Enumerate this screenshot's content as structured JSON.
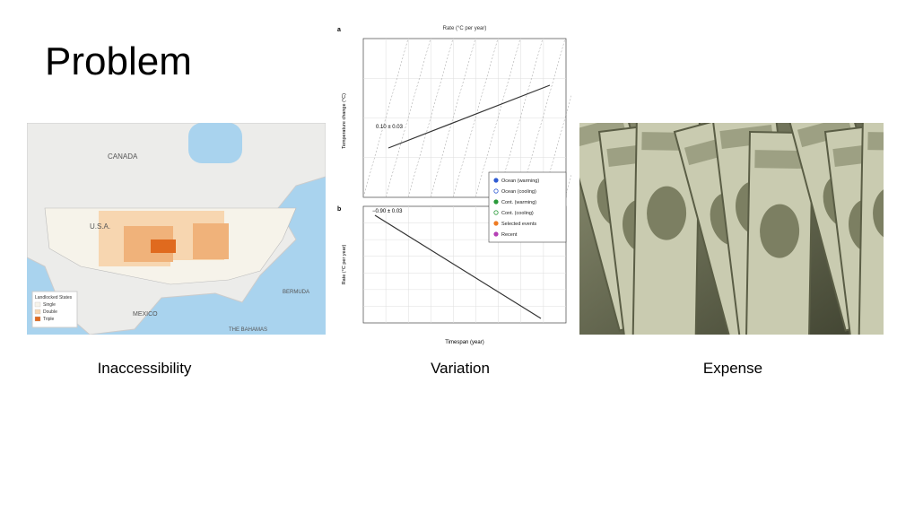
{
  "title": "Problem",
  "panels": [
    {
      "caption": "Inaccessibility",
      "map": {
        "labels": [
          "CANADA",
          "U.S.A.",
          "MEXICO",
          "BERMUDA",
          "THE BAHAMAS"
        ],
        "legend": {
          "title": "Landlocked States",
          "items": [
            "Single",
            "Double",
            "Triple"
          ]
        }
      }
    },
    {
      "caption": "Variation",
      "figure": {
        "panel_a": "a",
        "panel_b": "b",
        "top_axis": "Rate (°C per year)",
        "y_label_a": "Temperature change (°C)",
        "y_label_b": "Rate (°C per year)",
        "x_label": "Timespan (year)",
        "fit_a": "0.10 ± 0.03",
        "fit_b": "−0.90 ± 0.03",
        "legend": [
          "Ocean (warming)",
          "Ocean (cooling)",
          "Cont. (warming)",
          "Cont. (cooling)",
          "Selected events",
          "Recent"
        ]
      }
    },
    {
      "caption": "Expense"
    }
  ]
}
